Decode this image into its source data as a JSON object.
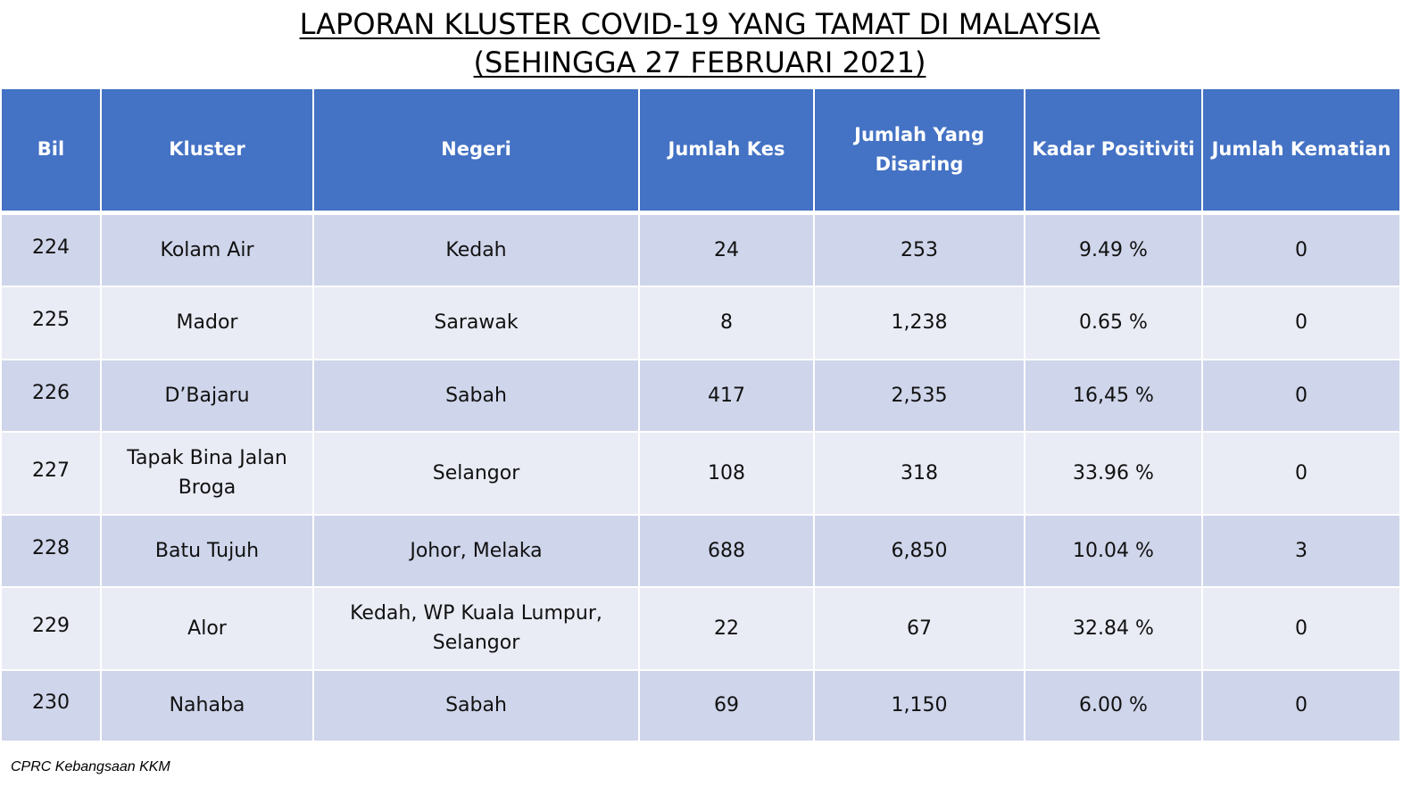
{
  "title": {
    "line1": "LAPORAN KLUSTER COVID-19 YANG TAMAT DI MALAYSIA",
    "line2": "(SEHINGGA  27 FEBRUARI 2021)"
  },
  "table": {
    "headers": [
      "Bil",
      "Kluster",
      "Negeri",
      "Jumlah Kes",
      "Jumlah Yang Disaring",
      "Kadar Positiviti",
      "Jumlah Kematian"
    ],
    "rows": [
      [
        "224",
        "Kolam Air",
        "Kedah",
        "24",
        "253",
        "9.49 %",
        "0"
      ],
      [
        "225",
        "Mador",
        "Sarawak",
        "8",
        "1,238",
        "0.65 %",
        "0"
      ],
      [
        "226",
        "D’Bajaru",
        "Sabah",
        "417",
        "2,535",
        "16,45 %",
        "0"
      ],
      [
        "227",
        "Tapak Bina Jalan Broga",
        "Selangor",
        "108",
        "318",
        "33.96 %",
        "0"
      ],
      [
        "228",
        "Batu Tujuh",
        "Johor, Melaka",
        "688",
        "6,850",
        "10.04 %",
        "3"
      ],
      [
        "229",
        "Alor",
        "Kedah, WP Kuala Lumpur, Selangor",
        "22",
        "67",
        "32.84 %",
        "0"
      ],
      [
        "230",
        "Nahaba",
        "Sabah",
        "69",
        "1,150",
        "6.00 %",
        "0"
      ]
    ]
  },
  "colors": {
    "header_bg": "#4472c4",
    "row_dark": "#cfd5ea",
    "row_light": "#e9ebf5"
  },
  "footer": "CPRC Kebangsaan KKM"
}
